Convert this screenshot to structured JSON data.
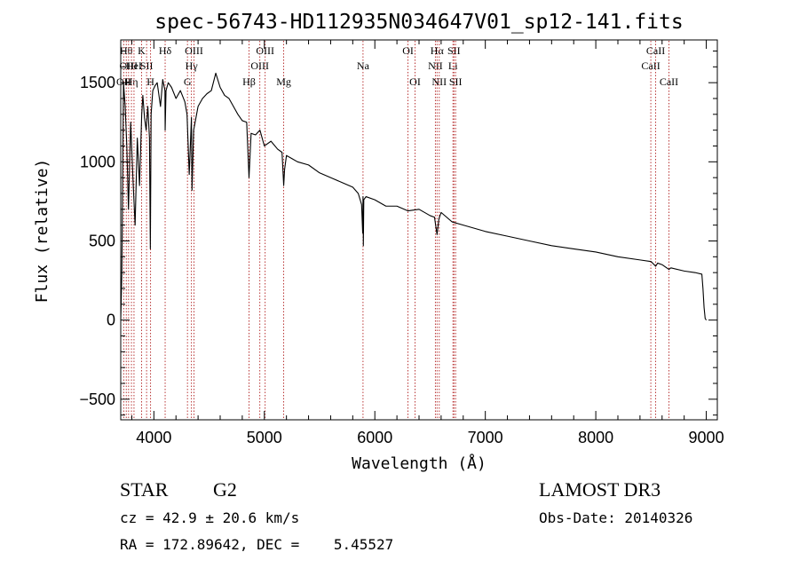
{
  "chart_data": {
    "type": "line",
    "title": "spec-56743-HD112935N034647V01_sp12-141.fits",
    "xlabel": "Wavelength (Å)",
    "ylabel": "Flux (relative)",
    "xlim": [
      3700,
      9100
    ],
    "ylim": [
      -630,
      1770
    ],
    "x_ticks": [
      4000,
      5000,
      6000,
      7000,
      8000,
      9000
    ],
    "x_tick_labels": [
      "4000",
      "5000",
      "6000",
      "7000",
      "8000",
      "9000"
    ],
    "y_ticks": [
      -500,
      0,
      500,
      1000,
      1500
    ],
    "y_tick_labels": [
      "−500",
      "0",
      "500",
      "1000",
      "1500"
    ],
    "grid": false,
    "series": [
      {
        "name": "flux",
        "x": [
          3700,
          3710,
          3725,
          3740,
          3755,
          3770,
          3790,
          3810,
          3830,
          3850,
          3870,
          3890,
          3900,
          3915,
          3930,
          3945,
          3960,
          3968,
          3975,
          3990,
          4010,
          4030,
          4060,
          4080,
          4100,
          4102,
          4110,
          4130,
          4160,
          4200,
          4240,
          4280,
          4300,
          4320,
          4330,
          4340,
          4345,
          4360,
          4400,
          4440,
          4480,
          4520,
          4560,
          4600,
          4640,
          4680,
          4720,
          4760,
          4800,
          4840,
          4861,
          4880,
          4920,
          4960,
          5000,
          5060,
          5120,
          5160,
          5175,
          5183,
          5200,
          5250,
          5300,
          5400,
          5500,
          5600,
          5700,
          5800,
          5850,
          5880,
          5890,
          5893,
          5896,
          5900,
          5920,
          6000,
          6100,
          6200,
          6300,
          6400,
          6500,
          6540,
          6563,
          6580,
          6600,
          6700,
          6800,
          7000,
          7200,
          7400,
          7600,
          7800,
          8000,
          8200,
          8400,
          8500,
          8542,
          8560,
          8600,
          8662,
          8680,
          8800,
          8900,
          8960,
          8970,
          8980,
          8990,
          9000
        ],
        "y": [
          0,
          300,
          1500,
          1350,
          1100,
          700,
          1250,
          900,
          600,
          1150,
          850,
          1300,
          1420,
          1280,
          1200,
          1350,
          1150,
          450,
          1300,
          1450,
          1480,
          1500,
          1350,
          1520,
          1450,
          1200,
          1450,
          1500,
          1470,
          1400,
          1450,
          1380,
          1300,
          920,
          1100,
          1280,
          820,
          1200,
          1350,
          1400,
          1430,
          1450,
          1560,
          1470,
          1420,
          1400,
          1350,
          1300,
          1260,
          1250,
          900,
          1180,
          1170,
          1200,
          1100,
          1130,
          1080,
          1060,
          850,
          950,
          1040,
          1020,
          1000,
          980,
          930,
          900,
          870,
          840,
          800,
          730,
          550,
          780,
          470,
          760,
          780,
          760,
          720,
          720,
          690,
          700,
          660,
          650,
          540,
          640,
          680,
          620,
          600,
          560,
          530,
          500,
          470,
          450,
          430,
          400,
          380,
          370,
          340,
          360,
          350,
          320,
          330,
          310,
          300,
          290,
          200,
          80,
          10,
          0
        ]
      }
    ],
    "lines": [
      {
        "x": 3727,
        "label": "OII",
        "row": 3
      },
      {
        "x": 3750,
        "label": "Hθ",
        "row": 1
      },
      {
        "x": 3771,
        "label": "OIII",
        "row": 2
      },
      {
        "x": 3797,
        "label": "Hη",
        "row": 3
      },
      {
        "x": 3820,
        "label": "HeI",
        "row": 2
      },
      {
        "x": 3889,
        "label": "K",
        "row": 1
      },
      {
        "x": 3934,
        "label": "SII",
        "row": 2
      },
      {
        "x": 3970,
        "label": "H",
        "row": 3
      },
      {
        "x": 4102,
        "label": "Hδ",
        "row": 1
      },
      {
        "x": 4304,
        "label": "G",
        "row": 3
      },
      {
        "x": 4340,
        "label": "Hγ",
        "row": 2
      },
      {
        "x": 4363,
        "label": "OIII",
        "row": 1
      },
      {
        "x": 4861,
        "label": "Hβ",
        "row": 3
      },
      {
        "x": 4959,
        "label": "OIII",
        "row": 2
      },
      {
        "x": 5007,
        "label": "OIII",
        "row": 1
      },
      {
        "x": 5175,
        "label": "Mg",
        "row": 3
      },
      {
        "x": 5893,
        "label": "Na",
        "row": 2
      },
      {
        "x": 6300,
        "label": "OI",
        "row": 1
      },
      {
        "x": 6364,
        "label": "OI",
        "row": 3
      },
      {
        "x": 6548,
        "label": "NII",
        "row": 2
      },
      {
        "x": 6563,
        "label": "Hα",
        "row": 1
      },
      {
        "x": 6583,
        "label": "NII",
        "row": 3
      },
      {
        "x": 6707,
        "label": "Li",
        "row": 2
      },
      {
        "x": 6716,
        "label": "SII",
        "row": 1
      },
      {
        "x": 6731,
        "label": "SII",
        "row": 3
      },
      {
        "x": 8498,
        "label": "CaII",
        "row": 2
      },
      {
        "x": 8542,
        "label": "CaII",
        "row": 1
      },
      {
        "x": 8662,
        "label": "CaII",
        "row": 3
      }
    ]
  },
  "info": {
    "object_type": "STAR",
    "subclass": "G2",
    "survey": "LAMOST DR3",
    "cz": "cz = 42.9 ± 20.6 km/s",
    "obs_date": "Obs-Date: 20140326",
    "coords": "RA = 172.89642, DEC =    5.45527"
  }
}
